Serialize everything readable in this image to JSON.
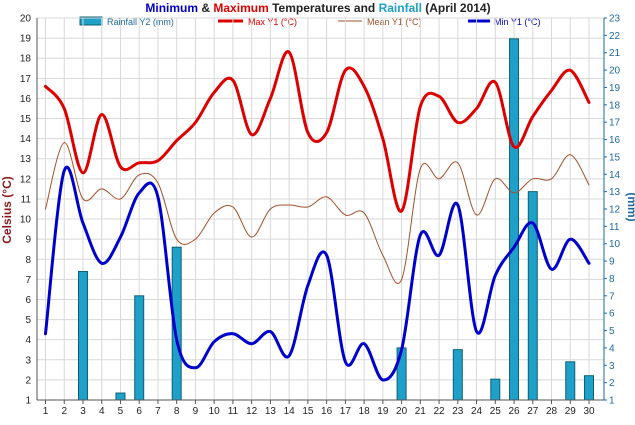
{
  "title": {
    "part1": "Minimum",
    "part2": " & ",
    "part3": "Maximum",
    "part4": " Temperatures and ",
    "part5": "Rainfall",
    "part6": " (April 2014)"
  },
  "colors": {
    "min": "#0000cc",
    "max": "#dd0000",
    "mean": "#a0522d",
    "rain_fill": "#1fa0c8",
    "rain_stroke": "#0e5f7a",
    "rain_axis": "#1e6aa0",
    "celsius_label": "#8b1a1a",
    "grid": "#d8d8d8"
  },
  "chart_data": {
    "type": "line",
    "title": "Minimum & Maximum Temperatures and Rainfall (April 2014)",
    "x": [
      "1",
      "2",
      "3",
      "4",
      "5",
      "6",
      "7",
      "8",
      "9",
      "10",
      "11",
      "12",
      "13",
      "14",
      "15",
      "16",
      "17",
      "18",
      "19",
      "20",
      "21",
      "22",
      "23",
      "24",
      "25",
      "26",
      "27",
      "28",
      "29",
      "30"
    ],
    "xlabel": "",
    "ylabel": "Celsius (°C)",
    "y2label": "(mm)",
    "ylim": [
      1,
      20
    ],
    "y2lim": [
      1,
      23
    ],
    "yticks": [
      "1",
      "2",
      "3",
      "4",
      "5",
      "6",
      "7",
      "8",
      "9",
      "10",
      "11",
      "12",
      "13",
      "14",
      "15",
      "16",
      "17",
      "18",
      "19",
      "20"
    ],
    "y2ticks": [
      "1",
      "2",
      "3",
      "4",
      "5",
      "6",
      "7",
      "8",
      "9",
      "10",
      "11",
      "12",
      "13",
      "14",
      "15",
      "16",
      "17",
      "18",
      "19",
      "20",
      "21",
      "22",
      "23"
    ],
    "grid": true,
    "legend_position": "top",
    "series": [
      {
        "name": "Rainfall Y2 (mm)",
        "type": "bar",
        "axis": "y2",
        "values": [
          0,
          0,
          7.4,
          0,
          0.4,
          6,
          0,
          8.8,
          0,
          0,
          0,
          0,
          0,
          0,
          0,
          0,
          0,
          0,
          0,
          3,
          0,
          0,
          2.9,
          0,
          1.2,
          20.8,
          12,
          0,
          2.2,
          1.4
        ]
      },
      {
        "name": "Max Y1 (°C)",
        "type": "line",
        "axis": "y1",
        "values": [
          16.6,
          15.5,
          12.3,
          15.2,
          12.6,
          12.8,
          12.9,
          13.9,
          14.8,
          16.3,
          16.9,
          14.2,
          16.0,
          18.3,
          14.3,
          14.3,
          17.4,
          16.6,
          14.0,
          10.4,
          15.6,
          16.1,
          14.8,
          15.5,
          16.8,
          13.6,
          15.1,
          16.4,
          17.4,
          15.8
        ]
      },
      {
        "name": "Mean Y1 (°C)",
        "type": "line",
        "axis": "y1",
        "values": [
          10.5,
          13.8,
          11.0,
          11.5,
          11.0,
          12.2,
          11.8,
          9.0,
          9.0,
          10.3,
          10.6,
          9.1,
          10.5,
          10.7,
          10.6,
          11.1,
          10.2,
          10.3,
          8.2,
          7.0,
          12.5,
          12.0,
          12.8,
          10.2,
          12.0,
          11.3,
          12.0,
          12.0,
          13.2,
          11.7
        ]
      },
      {
        "name": "Min Y1 (°C)",
        "type": "line",
        "axis": "y1",
        "values": [
          4.3,
          12.4,
          9.8,
          7.8,
          9.1,
          11.3,
          11.1,
          4.0,
          2.6,
          3.9,
          4.3,
          3.8,
          4.4,
          3.2,
          6.7,
          8.2,
          2.9,
          3.8,
          2.0,
          3.5,
          9.2,
          8.2,
          10.7,
          4.4,
          7.2,
          8.6,
          9.8,
          7.5,
          9.0,
          7.8
        ]
      }
    ]
  }
}
